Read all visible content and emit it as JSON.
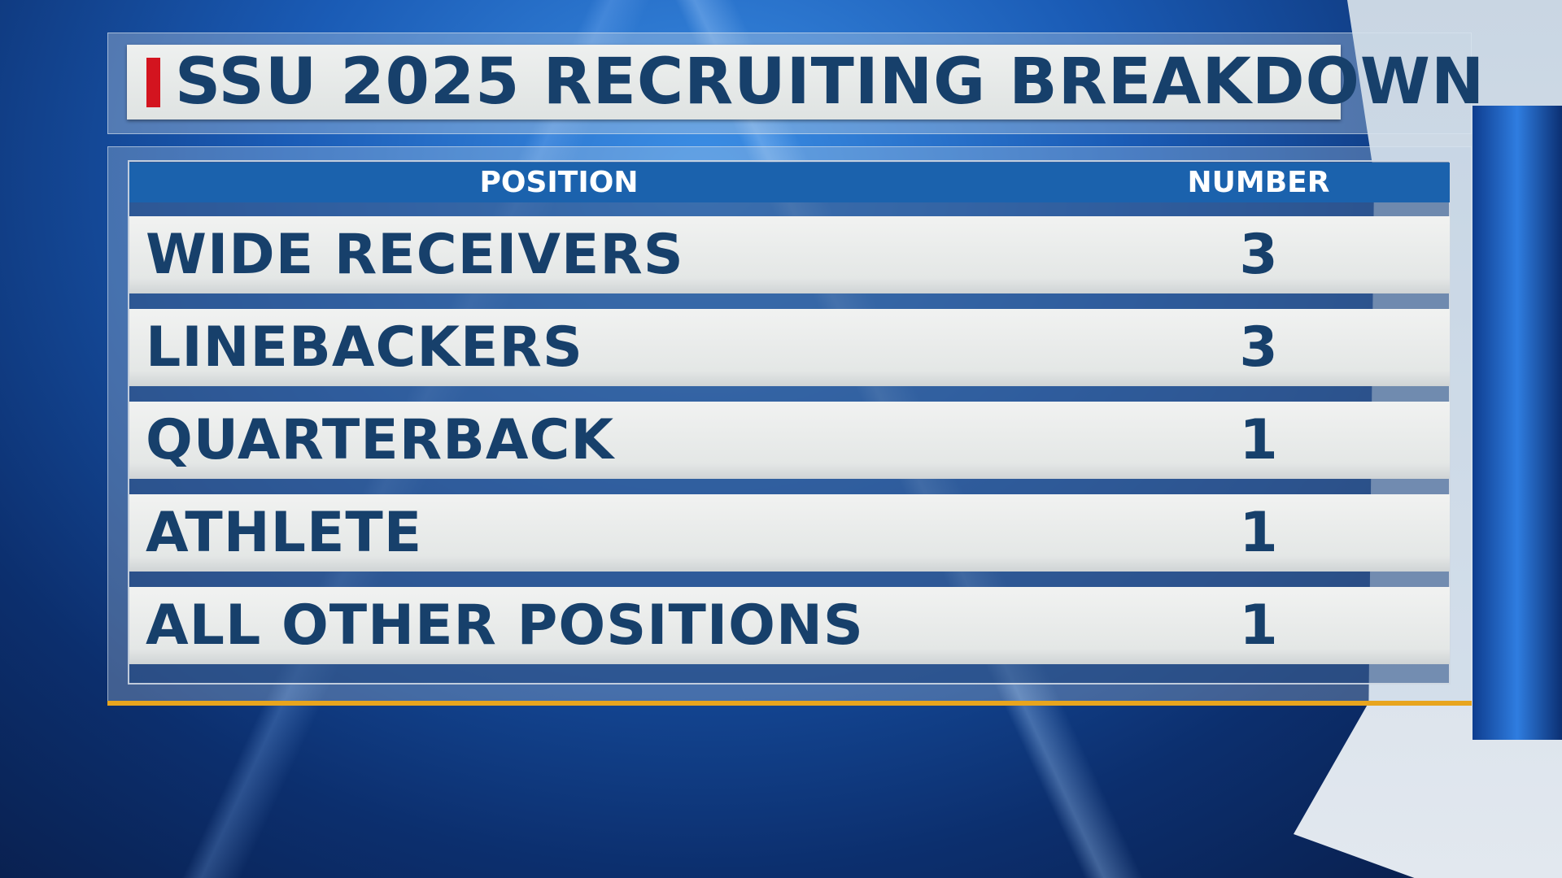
{
  "title": "SSU 2025 RECRUITING BREAKDOWN",
  "colors": {
    "title_text": "#17406b",
    "accent_red": "#d3141f",
    "header_blue": "#1b62ad",
    "accent_gold": "#e8a51e"
  },
  "table": {
    "headers": {
      "position": "POSITION",
      "number": "NUMBER"
    },
    "rows": [
      {
        "position": "WIDE RECEIVERS",
        "number": "3"
      },
      {
        "position": "LINEBACKERS",
        "number": "3"
      },
      {
        "position": "QUARTERBACK",
        "number": "1"
      },
      {
        "position": "ATHLETE",
        "number": "1"
      },
      {
        "position": "ALL OTHER POSITIONS",
        "number": "1"
      }
    ]
  }
}
